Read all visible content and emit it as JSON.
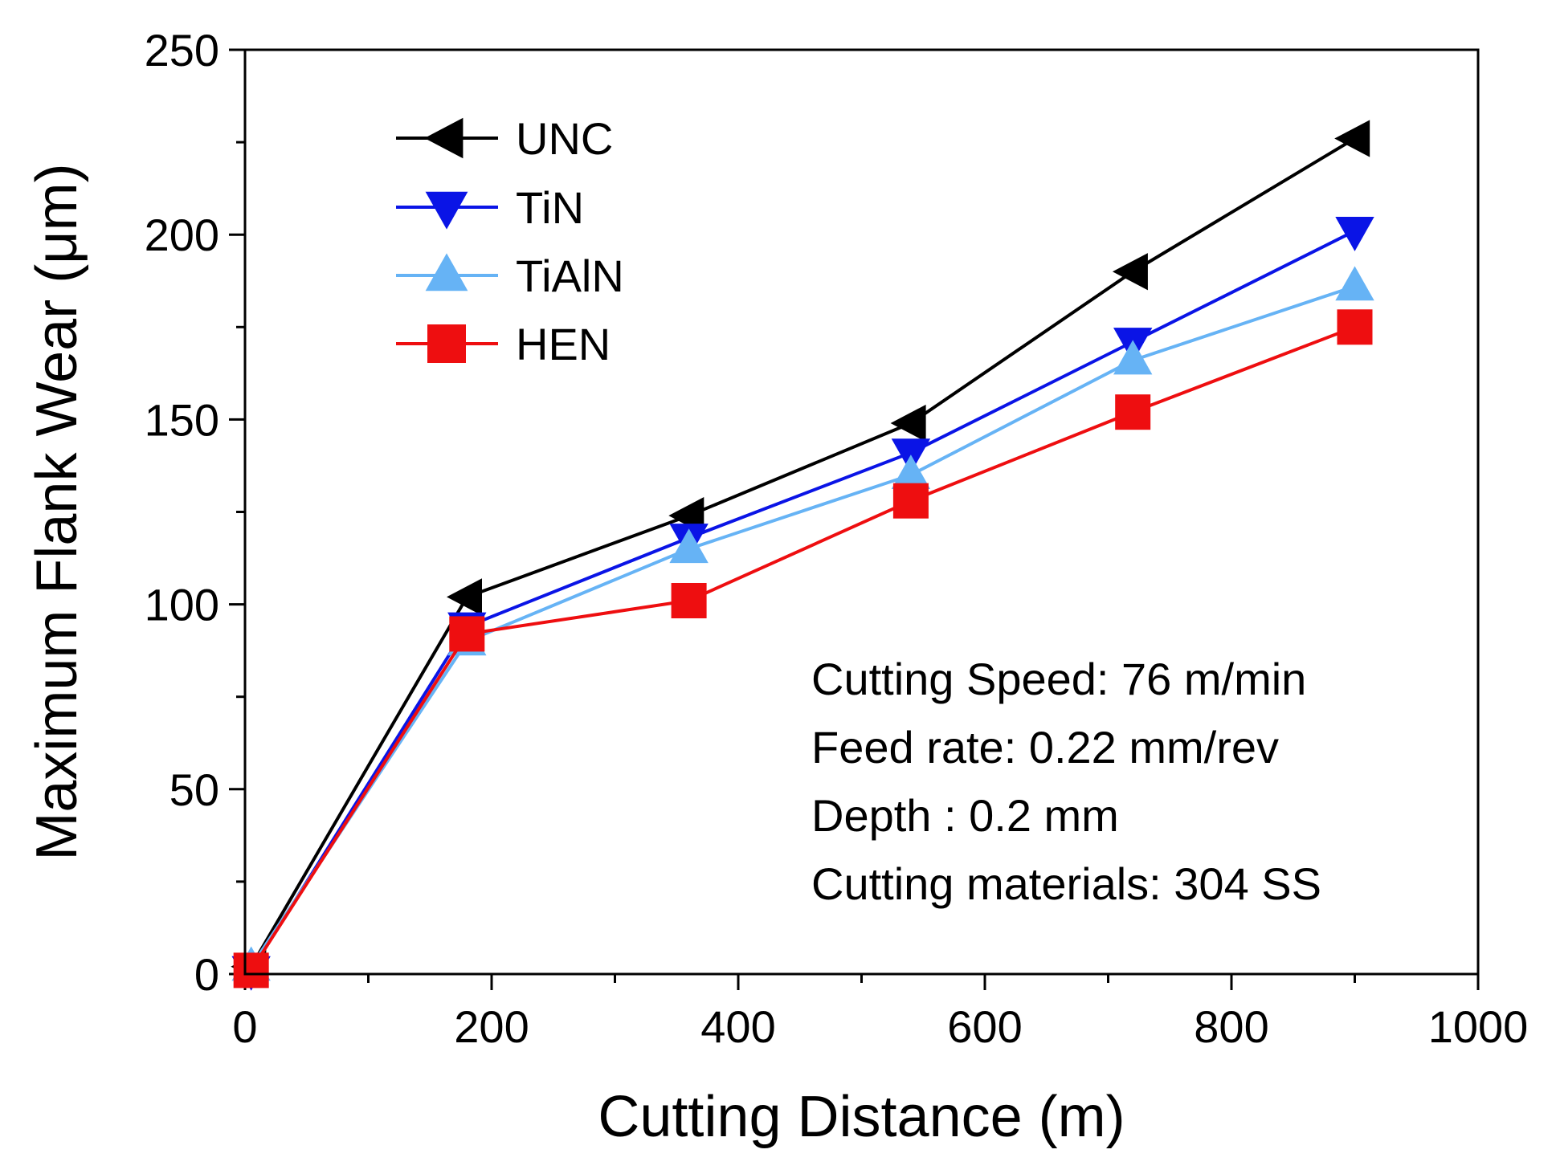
{
  "chart_data": {
    "type": "line",
    "xlabel": "Cutting Distance (m)",
    "ylabel": "Maximum Flank Wear (μm)",
    "xlim": [
      0,
      1000
    ],
    "ylim": [
      0,
      250
    ],
    "x_ticks": [
      0,
      200,
      400,
      600,
      800,
      1000
    ],
    "y_ticks": [
      0,
      50,
      100,
      150,
      200,
      250
    ],
    "x_tick_labels": [
      "0",
      "200",
      "400",
      "600",
      "800",
      "1000"
    ],
    "y_tick_labels": [
      "0",
      "50",
      "100",
      "150",
      "200",
      "250"
    ],
    "x_minor_step": 100,
    "y_minor_step": 25,
    "grid": false,
    "legend_position": "top-left",
    "series": [
      {
        "name": "UNC",
        "color": "#000000",
        "marker": "triangle-left",
        "x": [
          5,
          180,
          360,
          540,
          720,
          900
        ],
        "y": [
          2,
          102,
          124,
          149,
          190,
          226
        ]
      },
      {
        "name": "TiN",
        "color": "#0a14e6",
        "marker": "triangle-down",
        "x": [
          5,
          180,
          360,
          540,
          720,
          900
        ],
        "y": [
          1,
          94,
          118,
          141,
          171,
          201
        ]
      },
      {
        "name": "TiAlN",
        "color": "#66b3f5",
        "marker": "triangle-up",
        "x": [
          5,
          180,
          360,
          540,
          720,
          900
        ],
        "y": [
          2,
          90,
          115,
          135,
          166,
          186
        ]
      },
      {
        "name": "HEN",
        "color": "#ee0e10",
        "marker": "square",
        "x": [
          5,
          180,
          360,
          540,
          720,
          900
        ],
        "y": [
          1,
          92,
          101,
          128,
          152,
          175
        ]
      }
    ],
    "annotations": [
      "Cutting Speed: 76 m/min",
      "Feed rate: 0.22 mm/rev",
      "Depth : 0.2 mm",
      "Cutting materials: 304 SS"
    ]
  }
}
